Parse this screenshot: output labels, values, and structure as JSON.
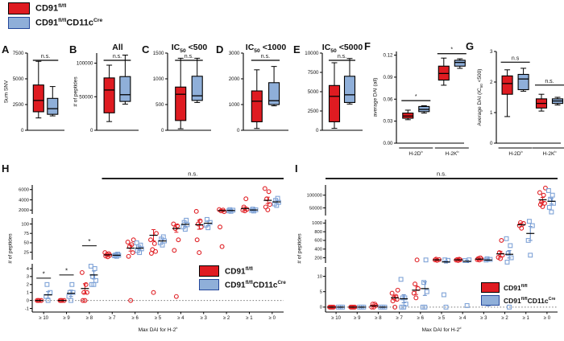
{
  "colors": {
    "red": "#DF1B21",
    "red_stroke": "#E02126",
    "blue_fill": "#8FAFD9",
    "blue_stroke": "#7FA3D7",
    "blue_err": "#5B84C4",
    "navy_border": "#24489B",
    "box_border": "#000000",
    "text": "#111111"
  },
  "legend": {
    "entries": [
      {
        "base": "CD91",
        "sup": "fl/fl",
        "base2": "",
        "sup2": ""
      },
      {
        "base": "CD91",
        "sup": "fl/fl",
        "base2": "CD11c",
        "sup2": "Cre"
      }
    ]
  },
  "panels": {
    "letters": [
      "A",
      "B",
      "C",
      "D",
      "E",
      "F",
      "G",
      "H",
      "I"
    ]
  },
  "chart_data": [
    {
      "id": "A",
      "type": "box",
      "ylabel": "Sum SNV",
      "ylim": [
        0,
        7500
      ],
      "yticks": [
        "0",
        "2500",
        "5000",
        "7500"
      ],
      "sig": "n.s.",
      "groups": [
        {
          "red": [
            1200,
            1800,
            2900,
            4400,
            6700
          ],
          "blue": [
            1400,
            1550,
            2100,
            3100,
            4250
          ]
        }
      ]
    },
    {
      "id": "B",
      "type": "box",
      "title": "All",
      "ylabel": "# of peptides",
      "ylim": [
        0,
        115000
      ],
      "yticks": [
        "0",
        "50000",
        "100000"
      ],
      "sig": "n.s.",
      "groups": [
        {
          "red": [
            13000,
            26000,
            60000,
            78000,
            97000
          ],
          "blue": [
            39000,
            43000,
            53000,
            80000,
            112000
          ]
        }
      ]
    },
    {
      "id": "C",
      "type": "box",
      "title_pre": "IC",
      "title_sub": "50",
      "title_post": " <500",
      "ylim": [
        0,
        1500
      ],
      "yticks": [
        "0",
        "500",
        "1000",
        "1500"
      ],
      "sig": "n.s.",
      "groups": [
        {
          "red": [
            30,
            190,
            700,
            840,
            1400
          ],
          "blue": [
            540,
            580,
            670,
            1050,
            1400
          ]
        }
      ]
    },
    {
      "id": "D",
      "type": "box",
      "title_pre": "IC",
      "title_sub": "50",
      "title_post": " <1000",
      "ylim": [
        0,
        3000
      ],
      "yticks": [
        "0",
        "1000",
        "2000",
        "3000"
      ],
      "sig": "n.s.",
      "groups": [
        {
          "red": [
            70,
            330,
            1130,
            1530,
            2350
          ],
          "blue": [
            950,
            1000,
            1150,
            1850,
            2480
          ]
        }
      ]
    },
    {
      "id": "E",
      "type": "box",
      "title_pre": "IC",
      "title_sub": "50",
      "title_post": " <5000",
      "ylim": [
        0,
        10000
      ],
      "yticks": [
        "0",
        "2500",
        "5000",
        "7500",
        "10000"
      ],
      "sig": "n.s.",
      "groups": [
        {
          "red": [
            250,
            1100,
            4400,
            5800,
            8750
          ],
          "blue": [
            3400,
            3600,
            4600,
            7000,
            9300
          ]
        }
      ]
    },
    {
      "id": "F",
      "type": "box",
      "ylabel": "average DAI (all)",
      "ylim": [
        0,
        0.125
      ],
      "yticks": [
        "0.00",
        "0.03",
        "0.06",
        "0.09",
        "0.12"
      ],
      "groups": [
        {
          "label_base": "H-2D",
          "label_sup": "b",
          "sig": "*",
          "sig_v": 0.058,
          "red": [
            0.032,
            0.034,
            0.037,
            0.041,
            0.045
          ],
          "blue": [
            0.041,
            0.043,
            0.046,
            0.05,
            0.051
          ]
        },
        {
          "label_base": "H-2K",
          "label_sup": "b",
          "sig": "*",
          "sig_v": 0.122,
          "red": [
            0.079,
            0.086,
            0.095,
            0.105,
            0.116
          ],
          "blue": [
            0.102,
            0.105,
            0.11,
            0.113,
            0.115
          ]
        }
      ]
    },
    {
      "id": "G",
      "type": "box",
      "ylabel_pre": "Average DAI (IC",
      "ylabel_sub": "50",
      "ylabel_post": " <500)",
      "ylim": [
        0,
        3
      ],
      "yticks": [
        "0",
        "1",
        "2",
        "3"
      ],
      "groups": [
        {
          "label_base": "H-2D",
          "label_sup": "b",
          "sig": "n.s",
          "sig_v": 2.65,
          "red": [
            0.87,
            1.6,
            1.95,
            2.2,
            2.4
          ],
          "blue": [
            1.7,
            1.75,
            2.1,
            2.25,
            2.45
          ]
        },
        {
          "label_base": "H-2K",
          "label_sup": "b",
          "sig": "n.s.",
          "sig_v": 1.9,
          "red": [
            1.05,
            1.15,
            1.3,
            1.45,
            1.6
          ],
          "blue": [
            1.25,
            1.3,
            1.38,
            1.45,
            1.5
          ]
        }
      ]
    },
    {
      "id": "H",
      "type": "scatter",
      "ylabel": "# of peptides",
      "xlabel_pre": "Max DAI for H-2",
      "xlabel_sup": "b",
      "ns_label": "n.s.",
      "ns_from": 3,
      "categories": [
        "≥ 10",
        "≥ 9",
        "≥ 8",
        "≥ 7",
        "≥ 6",
        "≥ 5",
        "≥ 4",
        "≥ 3",
        "≥ 2",
        "≥ 1",
        "≥ 0"
      ],
      "segments": [
        {
          "range": [
            -1.45,
            4.6
          ],
          "ticks": [
            "-1",
            "0",
            "1",
            "2",
            "3",
            "4"
          ]
        },
        {
          "range": [
            5,
            116
          ],
          "ticks": [
            "25",
            "50",
            "75",
            "100"
          ]
        },
        {
          "range": [
            1250,
            6900
          ],
          "ticks": [
            "2000",
            "4000",
            "6000"
          ]
        }
      ],
      "cat_sigs": [
        {
          "cat": 0,
          "label": "*",
          "v": 2.8
        },
        {
          "cat": 1,
          "label": "*",
          "v": 3.2
        },
        {
          "cat": 2,
          "label": "*",
          "v": 42
        }
      ],
      "red": {
        "points": [
          [
            0,
            0,
            0,
            0
          ],
          [
            0,
            0,
            0,
            0
          ],
          [
            0,
            0,
            1,
            1,
            2,
            3.5
          ],
          [
            13,
            15,
            17,
            19,
            21,
            24
          ],
          [
            0,
            14,
            24,
            40,
            45,
            52,
            58
          ],
          [
            1,
            22,
            27,
            32,
            48,
            58,
            75
          ],
          [
            0.5,
            30,
            58,
            88,
            95,
            100
          ],
          [
            24,
            58,
            92,
            100,
            108,
            1750
          ],
          [
            40,
            92,
            1700,
            1850,
            2000,
            2100
          ],
          [
            1850,
            1980,
            2150,
            2600,
            4200
          ],
          [
            2050,
            2600,
            3100,
            4200,
            5600,
            6200
          ]
        ],
        "means": [
          0,
          0,
          1.5,
          18,
          36,
          70,
          88,
          98,
          1900,
          2300,
          3900
        ],
        "errs": [
          0.15,
          0.15,
          0.6,
          2,
          8,
          15,
          10,
          12,
          140,
          320,
          620
        ]
      },
      "blue": {
        "points": [
          [
            0,
            0.5,
            1,
            2
          ],
          [
            0,
            0.5,
            1,
            1,
            2
          ],
          [
            2,
            2,
            2.5,
            3,
            4,
            4.3
          ],
          [
            14,
            15.5,
            17,
            18,
            20
          ],
          [
            24,
            29,
            34,
            39,
            44,
            50
          ],
          [
            44,
            50,
            55,
            60,
            66
          ],
          [
            86,
            92,
            98,
            104,
            110
          ],
          [
            90,
            97,
            104,
            112
          ],
          [
            1750,
            1850,
            1980,
            2080
          ],
          [
            1820,
            1940,
            2050,
            2200
          ],
          [
            2900,
            3200,
            3500,
            3900,
            4300
          ]
        ],
        "means": [
          0.7,
          0.9,
          3.2,
          17,
          36,
          55,
          99,
          102,
          1920,
          2020,
          3600
        ],
        "errs": [
          0.4,
          0.4,
          0.5,
          1.5,
          4,
          5,
          5,
          6,
          110,
          120,
          300
        ]
      }
    },
    {
      "id": "I",
      "type": "scatter",
      "ylabel": "# of peptides",
      "xlabel_pre": "Max  DAI for H-2",
      "xlabel_sup": "d",
      "ns_label": "n.s.",
      "ns_from": 0,
      "categories": [
        "≥ 10",
        "≥ 9",
        "≥ 8",
        "≥ 7",
        "≥ 6",
        "≥ 5",
        "≥ 4",
        "≥ 3",
        "≥ 2",
        "≥ 1",
        "≥ 0"
      ],
      "segments": [
        {
          "range": [
            -1.6,
            13
          ],
          "ticks": [
            "0",
            "5",
            "10"
          ]
        },
        {
          "range": [
            80,
            1080
          ],
          "ticks": [
            "200",
            "400",
            "600",
            "800",
            "1000"
          ]
        },
        {
          "range": [
            20000,
            140000
          ],
          "ticks": [
            "50000",
            "100000"
          ]
        }
      ],
      "cat_sigs": [],
      "red": {
        "points": [
          [
            0,
            0,
            0,
            0,
            0
          ],
          [
            0,
            0,
            0,
            0,
            0
          ],
          [
            0,
            0,
            0.5,
            1,
            1
          ],
          [
            0,
            2,
            2.5,
            3,
            3.5,
            4.5,
            5.5
          ],
          [
            3,
            4.5,
            6,
            7.5,
            150
          ],
          [
            140,
            150,
            158,
            168
          ],
          [
            138,
            146,
            153,
            160,
            166
          ],
          [
            148,
            158,
            170,
            182,
            200
          ],
          [
            180,
            210,
            260,
            320,
            600
          ],
          [
            880,
            940,
            990,
            1010
          ],
          [
            55000,
            63000,
            68000,
            73000,
            100000,
            110000,
            128000
          ]
        ],
        "means": [
          0,
          0,
          0.4,
          3,
          5.5,
          152,
          152,
          168,
          290,
          960,
          82000
        ],
        "errs": [
          0.1,
          0.1,
          0.3,
          0.7,
          1.4,
          8,
          8,
          10,
          60,
          40,
          9000
        ]
      },
      "blue": {
        "points": [
          [
            0,
            0,
            0
          ],
          [
            0,
            0,
            0
          ],
          [
            0,
            0,
            0
          ],
          [
            0,
            0,
            1,
            3,
            3,
            9
          ],
          [
            0,
            0,
            5,
            8,
            150
          ],
          [
            0,
            4,
            140,
            152
          ],
          [
            0.5,
            135,
            152
          ],
          [
            1,
            148,
            162,
            178
          ],
          [
            0,
            100,
            200,
            300,
            480,
            640
          ],
          [
            260,
            600,
            940,
            1040
          ],
          [
            34000,
            52000,
            68000,
            84000,
            100000,
            118000
          ]
        ],
        "means": [
          0,
          0,
          0,
          2.7,
          6,
          105,
          118,
          148,
          280,
          760,
          76000
        ],
        "errs": [
          0.1,
          0.1,
          0.1,
          1.3,
          2.2,
          25,
          28,
          22,
          85,
          160,
          11000
        ]
      }
    }
  ]
}
